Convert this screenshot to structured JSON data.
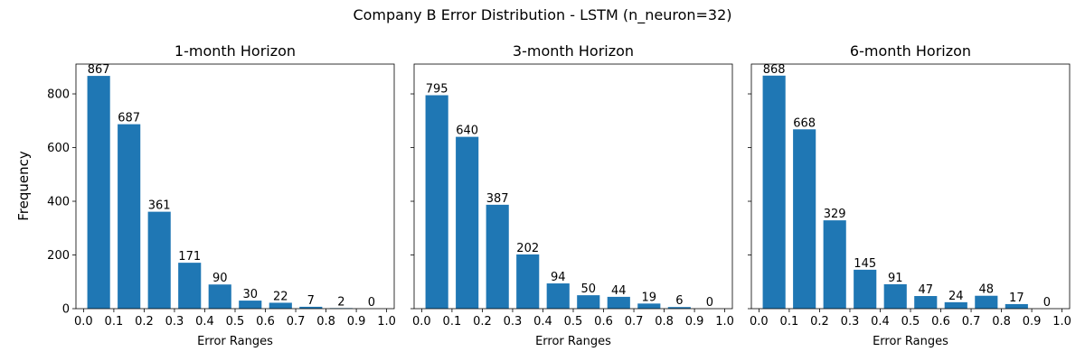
{
  "suptitle": "Company B Error Distribution - LSTM (n_neuron=32)",
  "ylabel": "Frequency",
  "bar_color": "#1f77b4",
  "chart_data": [
    {
      "type": "bar",
      "title": "1-month Horizon",
      "xlabel": "Error Ranges",
      "x": [
        0.05,
        0.15,
        0.25,
        0.35,
        0.45,
        0.55,
        0.65,
        0.75,
        0.85,
        0.95
      ],
      "values": [
        867,
        687,
        361,
        171,
        90,
        30,
        22,
        7,
        2,
        0
      ],
      "bar_width": 0.075,
      "xlim": [
        -0.025,
        1.025
      ],
      "xticks": [
        0.0,
        0.1,
        0.2,
        0.3,
        0.4,
        0.5,
        0.6,
        0.7,
        0.8,
        0.9,
        1.0
      ],
      "ylim": [
        0,
        911
      ],
      "yticks": [
        0,
        200,
        400,
        600,
        800
      ],
      "show_yticklabels": true
    },
    {
      "type": "bar",
      "title": "3-month Horizon",
      "xlabel": "Error Ranges",
      "x": [
        0.05,
        0.15,
        0.25,
        0.35,
        0.45,
        0.55,
        0.65,
        0.75,
        0.85,
        0.95
      ],
      "values": [
        795,
        640,
        387,
        202,
        94,
        50,
        44,
        19,
        6,
        0
      ],
      "bar_width": 0.075,
      "xlim": [
        -0.025,
        1.025
      ],
      "xticks": [
        0.0,
        0.1,
        0.2,
        0.3,
        0.4,
        0.5,
        0.6,
        0.7,
        0.8,
        0.9,
        1.0
      ],
      "ylim": [
        0,
        911
      ],
      "yticks": [
        0,
        200,
        400,
        600,
        800
      ],
      "show_yticklabels": false
    },
    {
      "type": "bar",
      "title": "6-month Horizon",
      "xlabel": "Error Ranges",
      "x": [
        0.05,
        0.15,
        0.25,
        0.35,
        0.45,
        0.55,
        0.65,
        0.75,
        0.85,
        0.95
      ],
      "values": [
        868,
        668,
        329,
        145,
        91,
        47,
        24,
        48,
        17,
        0
      ],
      "bar_width": 0.075,
      "xlim": [
        -0.025,
        1.025
      ],
      "xticks": [
        0.0,
        0.1,
        0.2,
        0.3,
        0.4,
        0.5,
        0.6,
        0.7,
        0.8,
        0.9,
        1.0
      ],
      "ylim": [
        0,
        911
      ],
      "yticks": [
        0,
        200,
        400,
        600,
        800
      ],
      "show_yticklabels": false
    }
  ]
}
